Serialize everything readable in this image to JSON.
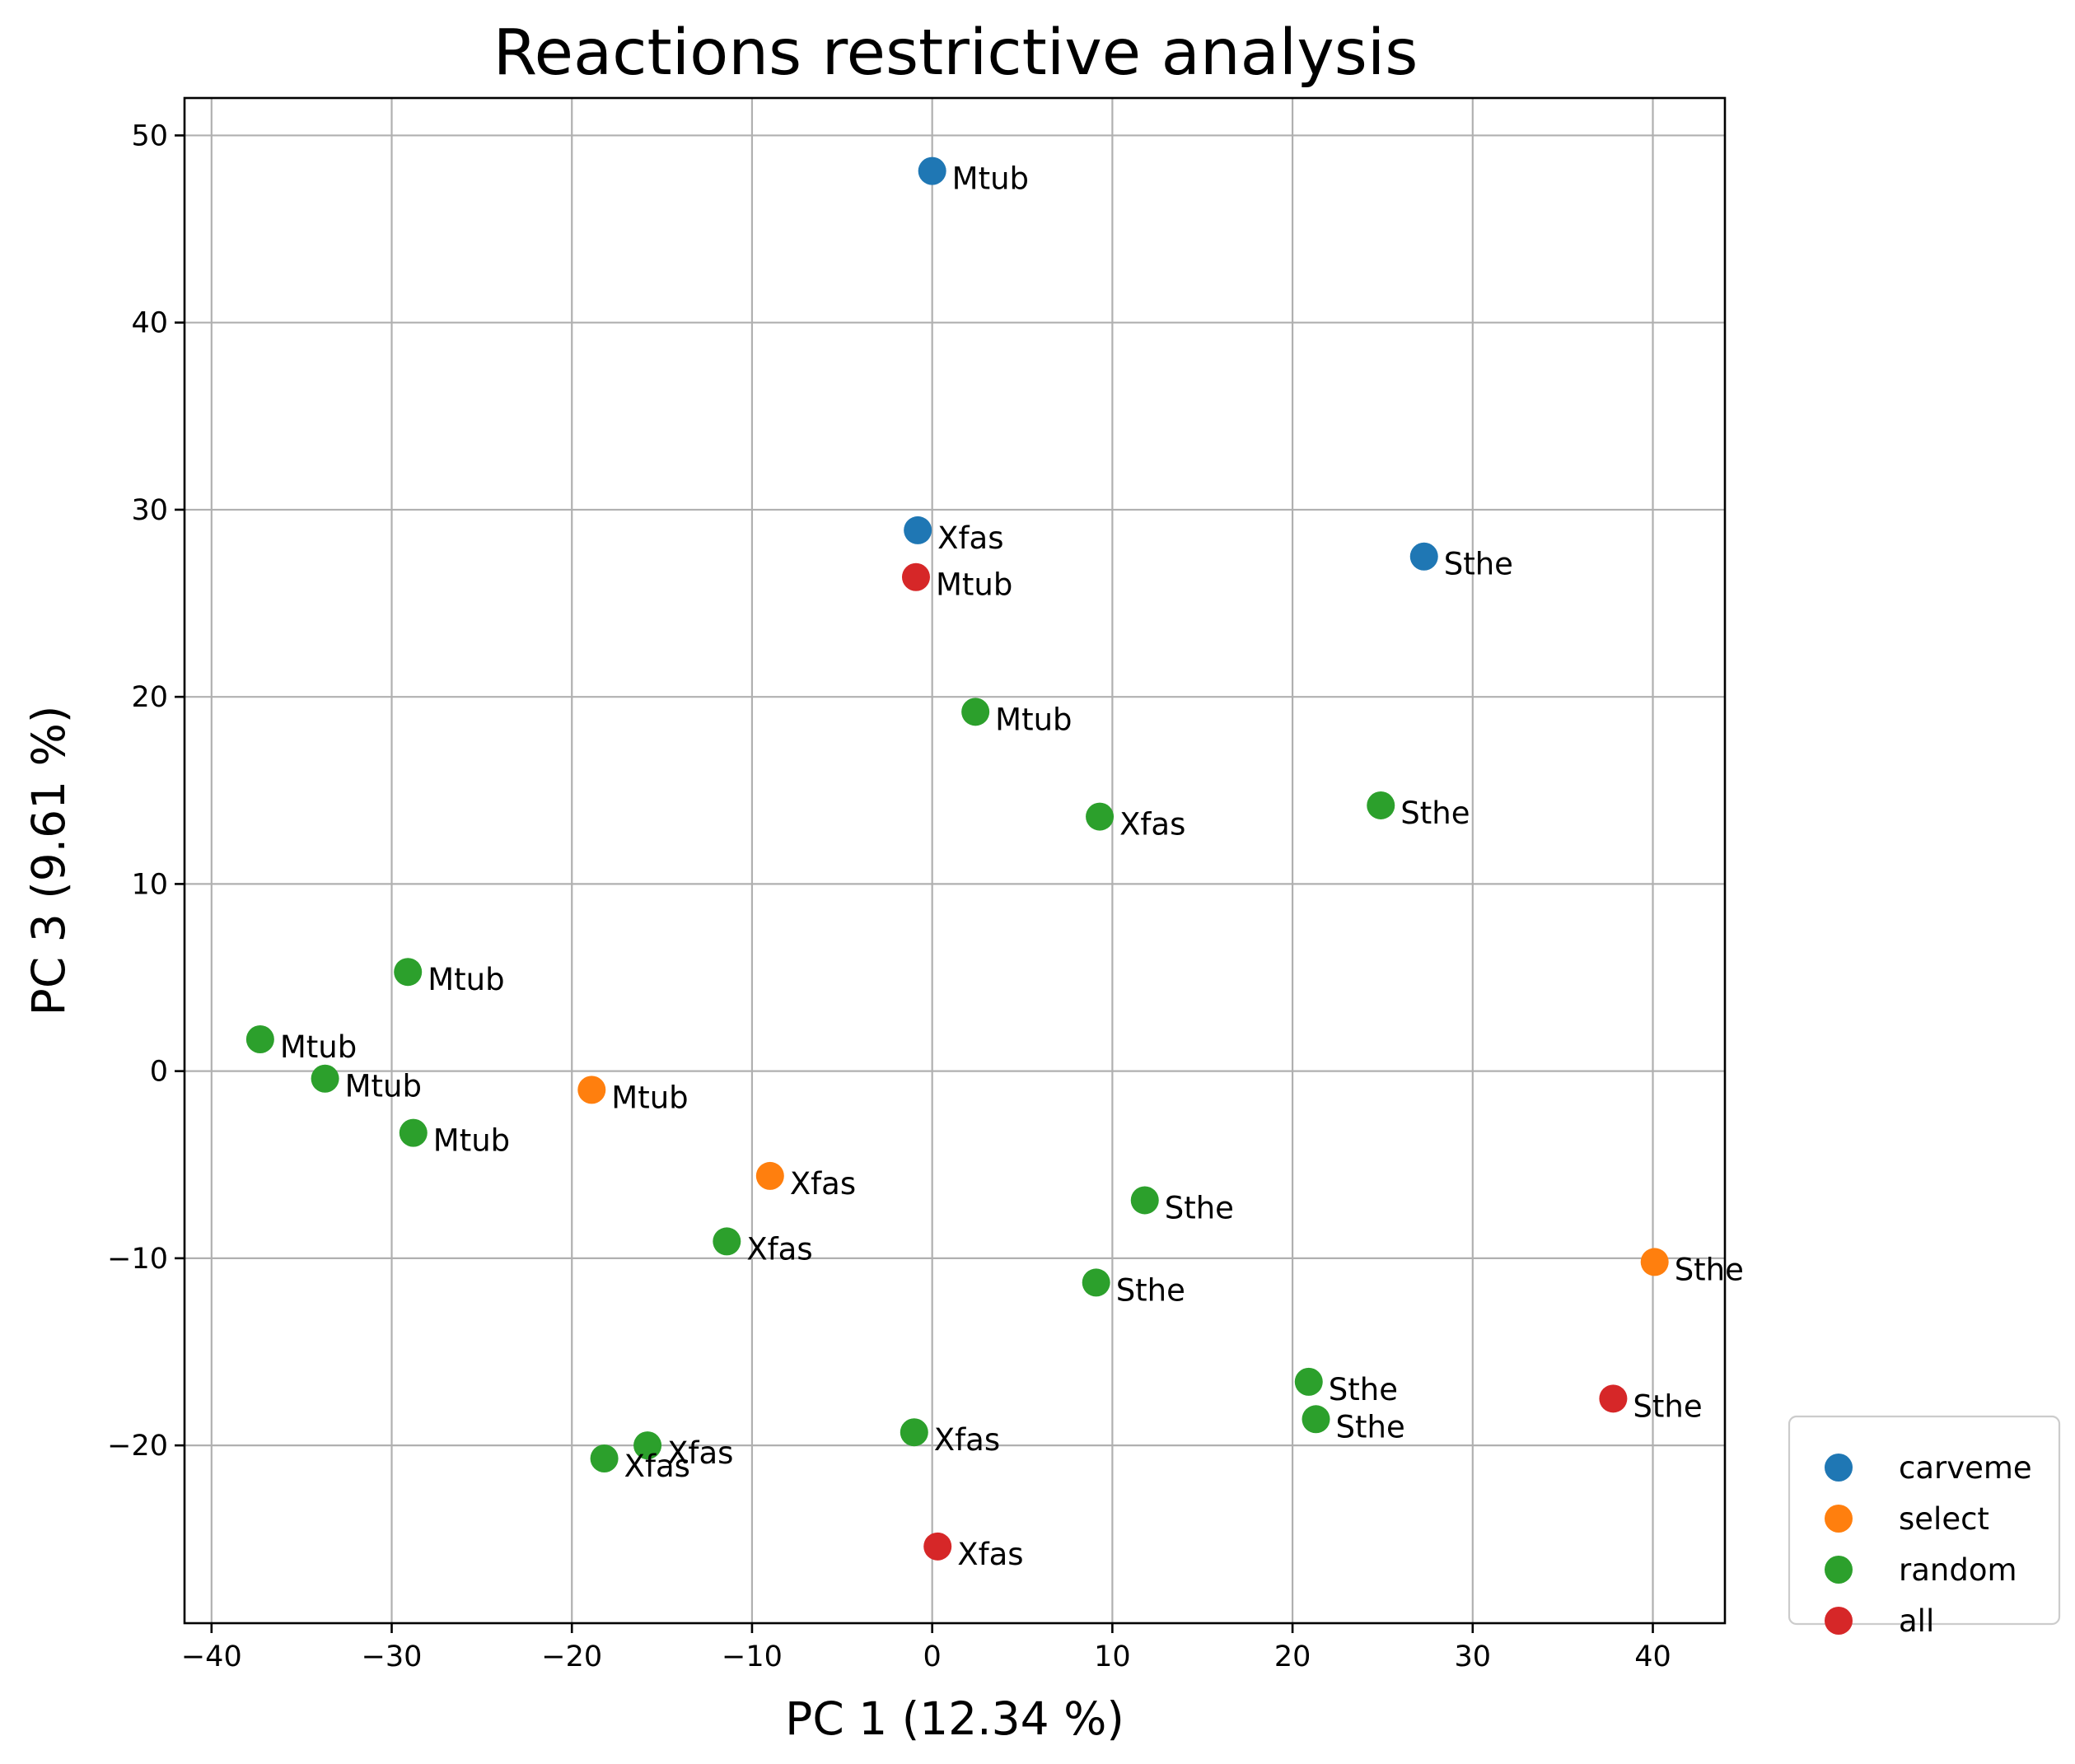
{
  "chart_data": {
    "type": "scatter",
    "title": "Reactions restrictive analysis",
    "xlabel": "PC 1 (12.34 %)",
    "ylabel": "PC 3 (9.61 %)",
    "xlim": [
      -41.5,
      44
    ],
    "ylim": [
      -29.5,
      52
    ],
    "xticks": [
      -40,
      -30,
      -20,
      -10,
      0,
      10,
      20,
      30,
      40
    ],
    "xtick_labels": [
      "−40",
      "−30",
      "−20",
      "−10",
      "0",
      "10",
      "20",
      "30",
      "40"
    ],
    "yticks": [
      -20,
      -10,
      0,
      10,
      20,
      30,
      40,
      50
    ],
    "ytick_labels": [
      "−20",
      "−10",
      "0",
      "10",
      "20",
      "30",
      "40",
      "50"
    ],
    "grid": true,
    "legend_position": "outside-bottom-right",
    "series": [
      {
        "name": "carveme",
        "color": "#1f77b4",
        "points": [
          {
            "x": 0.0,
            "y": 48.1,
            "label": "Mtub"
          },
          {
            "x": -0.8,
            "y": 28.9,
            "label": "Xfas"
          },
          {
            "x": 27.3,
            "y": 27.5,
            "label": "Sthe"
          }
        ]
      },
      {
        "name": "select",
        "color": "#ff7f0e",
        "points": [
          {
            "x": -18.9,
            "y": -1.0,
            "label": "Mtub"
          },
          {
            "x": -9.0,
            "y": -5.6,
            "label": "Xfas"
          },
          {
            "x": 40.1,
            "y": -10.2,
            "label": "Sthe"
          }
        ]
      },
      {
        "name": "random",
        "color": "#2ca02c",
        "points": [
          {
            "x": 2.4,
            "y": 19.2,
            "label": "Mtub"
          },
          {
            "x": 9.3,
            "y": 13.6,
            "label": "Xfas"
          },
          {
            "x": 24.9,
            "y": 14.2,
            "label": "Sthe"
          },
          {
            "x": -29.1,
            "y": 5.3,
            "label": "Mtub"
          },
          {
            "x": -37.3,
            "y": 1.7,
            "label": "Mtub"
          },
          {
            "x": -33.7,
            "y": -0.4,
            "label": "Mtub"
          },
          {
            "x": -28.8,
            "y": -3.3,
            "label": "Mtub"
          },
          {
            "x": 11.8,
            "y": -6.9,
            "label": "Sthe"
          },
          {
            "x": -11.4,
            "y": -9.1,
            "label": "Xfas"
          },
          {
            "x": 9.1,
            "y": -11.3,
            "label": "Sthe"
          },
          {
            "x": 20.9,
            "y": -16.6,
            "label": "Sthe"
          },
          {
            "x": 21.3,
            "y": -18.6,
            "label": "Sthe"
          },
          {
            "x": -15.8,
            "y": -20.0,
            "label": "Xfas"
          },
          {
            "x": -18.2,
            "y": -20.7,
            "label": "Xfas"
          },
          {
            "x": -1.0,
            "y": -19.3,
            "label": "Xfas"
          }
        ]
      },
      {
        "name": "all",
        "color": "#d62728",
        "points": [
          {
            "x": -0.9,
            "y": 26.4,
            "label": "Mtub"
          },
          {
            "x": 37.8,
            "y": -17.5,
            "label": "Sthe"
          },
          {
            "x": 0.3,
            "y": -25.4,
            "label": "Xfas"
          }
        ]
      }
    ]
  }
}
